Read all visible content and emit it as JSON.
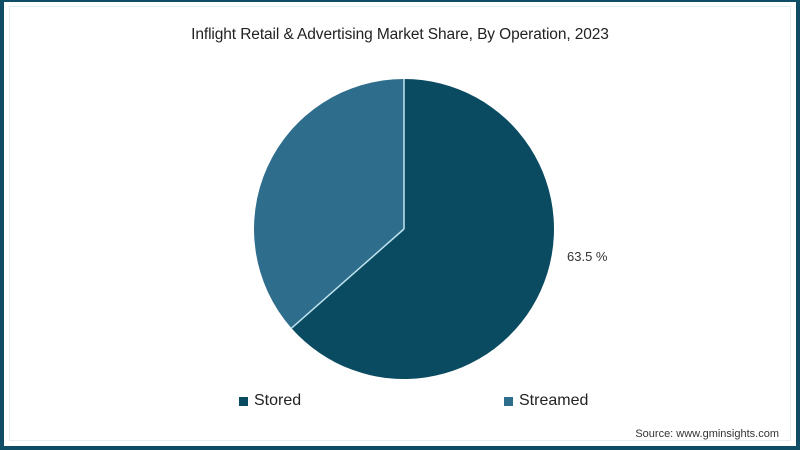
{
  "chart_data": {
    "type": "pie",
    "title": "Inflight Retail & Advertising Market Share, By Operation, 2023",
    "categories": [
      "Stored",
      "Streamed"
    ],
    "values": [
      63.5,
      36.5
    ],
    "unit": "%",
    "data_labels": [
      {
        "category": "Stored",
        "text": "63.5 %"
      }
    ],
    "colors": [
      "#0a4b62",
      "#2f6d8d"
    ],
    "start_angle": "12 o'clock, clockwise",
    "legend_position": "bottom",
    "source": "Source: www.gminsights.com"
  },
  "title": "Inflight Retail & Advertising Market Share, By Operation, 2023",
  "label_stored": "63.5 %",
  "legend": {
    "items": [
      {
        "label": "Stored",
        "color": "#0a4b62"
      },
      {
        "label": "Streamed",
        "color": "#2f6d8d"
      }
    ]
  },
  "source": "Source: www.gminsights.com",
  "colors": {
    "frame": "#0e4d63",
    "separator": "#bfe3ef"
  }
}
